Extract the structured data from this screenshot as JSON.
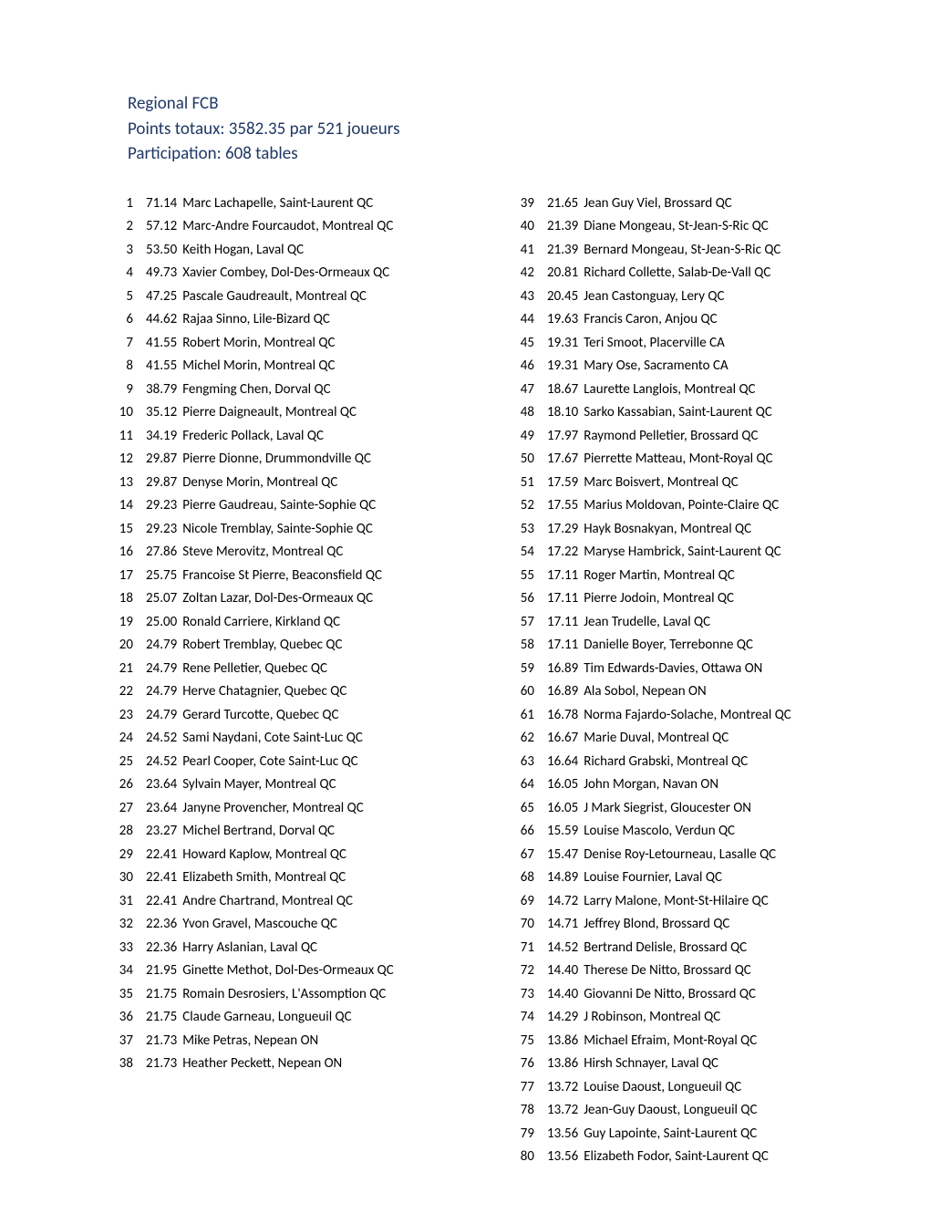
{
  "header": {
    "title": "Regional FCB",
    "line2": "Points totaux: 3582.35 par 521 joueurs",
    "line3": "Participation:  608 tables"
  },
  "entries": [
    {
      "rank": 1,
      "pts": "71.14",
      "name": "Marc Lachapelle, Saint-Laurent QC"
    },
    {
      "rank": 2,
      "pts": "57.12",
      "name": "Marc-Andre Fourcaudot, Montreal QC"
    },
    {
      "rank": 3,
      "pts": "53.50",
      "name": "Keith Hogan, Laval QC"
    },
    {
      "rank": 4,
      "pts": "49.73",
      "name": "Xavier Combey, Dol-Des-Ormeaux QC"
    },
    {
      "rank": 5,
      "pts": "47.25",
      "name": "Pascale Gaudreault, Montreal QC"
    },
    {
      "rank": 6,
      "pts": "44.62",
      "name": "Rajaa Sinno, Lile-Bizard QC"
    },
    {
      "rank": 7,
      "pts": "41.55",
      "name": "Robert Morin, Montreal QC"
    },
    {
      "rank": 8,
      "pts": "41.55",
      "name": "Michel Morin, Montreal QC"
    },
    {
      "rank": 9,
      "pts": "38.79",
      "name": "Fengming Chen, Dorval QC"
    },
    {
      "rank": 10,
      "pts": "35.12",
      "name": "Pierre Daigneault, Montreal QC"
    },
    {
      "rank": 11,
      "pts": "34.19",
      "name": "Frederic Pollack, Laval QC"
    },
    {
      "rank": 12,
      "pts": "29.87",
      "name": "Pierre Dionne, Drummondville QC"
    },
    {
      "rank": 13,
      "pts": "29.87",
      "name": "Denyse Morin, Montreal QC"
    },
    {
      "rank": 14,
      "pts": "29.23",
      "name": "Pierre Gaudreau, Sainte-Sophie QC"
    },
    {
      "rank": 15,
      "pts": "29.23",
      "name": "Nicole Tremblay, Sainte-Sophie QC"
    },
    {
      "rank": 16,
      "pts": "27.86",
      "name": "Steve Merovitz, Montreal QC"
    },
    {
      "rank": 17,
      "pts": "25.75",
      "name": "Francoise St Pierre, Beaconsfield QC"
    },
    {
      "rank": 18,
      "pts": "25.07",
      "name": "Zoltan Lazar, Dol-Des-Ormeaux QC"
    },
    {
      "rank": 19,
      "pts": "25.00",
      "name": "Ronald Carriere, Kirkland QC"
    },
    {
      "rank": 20,
      "pts": "24.79",
      "name": "Robert Tremblay, Quebec QC"
    },
    {
      "rank": 21,
      "pts": "24.79",
      "name": "Rene Pelletier, Quebec QC"
    },
    {
      "rank": 22,
      "pts": "24.79",
      "name": "Herve Chatagnier, Quebec QC"
    },
    {
      "rank": 23,
      "pts": "24.79",
      "name": "Gerard Turcotte, Quebec QC"
    },
    {
      "rank": 24,
      "pts": "24.52",
      "name": "Sami Naydani, Cote Saint-Luc QC"
    },
    {
      "rank": 25,
      "pts": "24.52",
      "name": "Pearl Cooper, Cote Saint-Luc QC"
    },
    {
      "rank": 26,
      "pts": "23.64",
      "name": "Sylvain Mayer, Montreal QC"
    },
    {
      "rank": 27,
      "pts": "23.64",
      "name": "Janyne Provencher, Montreal QC"
    },
    {
      "rank": 28,
      "pts": "23.27",
      "name": "Michel Bertrand, Dorval QC"
    },
    {
      "rank": 29,
      "pts": "22.41",
      "name": "Howard Kaplow, Montreal QC"
    },
    {
      "rank": 30,
      "pts": "22.41",
      "name": "Elizabeth Smith, Montreal QC"
    },
    {
      "rank": 31,
      "pts": "22.41",
      "name": "Andre Chartrand, Montreal QC"
    },
    {
      "rank": 32,
      "pts": "22.36",
      "name": "Yvon Gravel, Mascouche QC"
    },
    {
      "rank": 33,
      "pts": "22.36",
      "name": "Harry Aslanian, Laval QC"
    },
    {
      "rank": 34,
      "pts": "21.95",
      "name": "Ginette Methot, Dol-Des-Ormeaux QC"
    },
    {
      "rank": 35,
      "pts": "21.75",
      "name": "Romain Desrosiers, L'Assomption QC"
    },
    {
      "rank": 36,
      "pts": "21.75",
      "name": "Claude Garneau, Longueuil QC"
    },
    {
      "rank": 37,
      "pts": "21.73",
      "name": "Mike Petras, Nepean ON"
    },
    {
      "rank": 38,
      "pts": "21.73",
      "name": "Heather Peckett, Nepean ON"
    },
    {
      "rank": 39,
      "pts": "21.65",
      "name": "Jean Guy Viel, Brossard QC"
    },
    {
      "rank": 40,
      "pts": "21.39",
      "name": "Diane Mongeau, St-Jean-S-Ric QC"
    },
    {
      "rank": 41,
      "pts": "21.39",
      "name": "Bernard Mongeau, St-Jean-S-Ric QC"
    },
    {
      "rank": 42,
      "pts": "20.81",
      "name": "Richard Collette, Salab-De-Vall QC"
    },
    {
      "rank": 43,
      "pts": "20.45",
      "name": "Jean Castonguay, Lery QC"
    },
    {
      "rank": 44,
      "pts": "19.63",
      "name": "Francis Caron, Anjou QC"
    },
    {
      "rank": 45,
      "pts": "19.31",
      "name": "Teri Smoot, Placerville CA"
    },
    {
      "rank": 46,
      "pts": "19.31",
      "name": "Mary Ose, Sacramento CA"
    },
    {
      "rank": 47,
      "pts": "18.67",
      "name": "Laurette Langlois, Montreal QC"
    },
    {
      "rank": 48,
      "pts": "18.10",
      "name": "Sarko Kassabian, Saint-Laurent QC"
    },
    {
      "rank": 49,
      "pts": "17.97",
      "name": "Raymond Pelletier, Brossard QC"
    },
    {
      "rank": 50,
      "pts": "17.67",
      "name": "Pierrette Matteau, Mont-Royal QC"
    },
    {
      "rank": 51,
      "pts": "17.59",
      "name": "Marc Boisvert, Montreal QC"
    },
    {
      "rank": 52,
      "pts": "17.55",
      "name": "Marius Moldovan, Pointe-Claire QC"
    },
    {
      "rank": 53,
      "pts": "17.29",
      "name": "Hayk Bosnakyan, Montreal QC"
    },
    {
      "rank": 54,
      "pts": "17.22",
      "name": "Maryse Hambrick, Saint-Laurent QC"
    },
    {
      "rank": 55,
      "pts": "17.11",
      "name": "Roger Martin, Montreal QC"
    },
    {
      "rank": 56,
      "pts": "17.11",
      "name": "Pierre Jodoin, Montreal QC"
    },
    {
      "rank": 57,
      "pts": "17.11",
      "name": "Jean Trudelle, Laval QC"
    },
    {
      "rank": 58,
      "pts": "17.11",
      "name": "Danielle Boyer, Terrebonne QC"
    },
    {
      "rank": 59,
      "pts": "16.89",
      "name": "Tim Edwards-Davies, Ottawa ON"
    },
    {
      "rank": 60,
      "pts": "16.89",
      "name": "Ala Sobol, Nepean ON"
    },
    {
      "rank": 61,
      "pts": "16.78",
      "name": "Norma Fajardo-Solache, Montreal QC"
    },
    {
      "rank": 62,
      "pts": "16.67",
      "name": "Marie Duval, Montreal QC"
    },
    {
      "rank": 63,
      "pts": "16.64",
      "name": "Richard Grabski, Montreal QC"
    },
    {
      "rank": 64,
      "pts": "16.05",
      "name": "John Morgan, Navan ON"
    },
    {
      "rank": 65,
      "pts": "16.05",
      "name": "J Mark Siegrist, Gloucester ON"
    },
    {
      "rank": 66,
      "pts": "15.59",
      "name": "Louise Mascolo, Verdun QC"
    },
    {
      "rank": 67,
      "pts": "15.47",
      "name": "Denise Roy-Letourneau, Lasalle QC"
    },
    {
      "rank": 68,
      "pts": "14.89",
      "name": "Louise Fournier, Laval QC"
    },
    {
      "rank": 69,
      "pts": "14.72",
      "name": "Larry Malone, Mont-St-Hilaire QC"
    },
    {
      "rank": 70,
      "pts": "14.71",
      "name": "Jeffrey Blond, Brossard QC"
    },
    {
      "rank": 71,
      "pts": "14.52",
      "name": "Bertrand Delisle, Brossard QC"
    },
    {
      "rank": 72,
      "pts": "14.40",
      "name": "Therese De Nitto, Brossard QC"
    },
    {
      "rank": 73,
      "pts": "14.40",
      "name": "Giovanni De Nitto, Brossard QC"
    },
    {
      "rank": 74,
      "pts": "14.29",
      "name": "J Robinson, Montreal QC"
    },
    {
      "rank": 75,
      "pts": "13.86",
      "name": "Michael Efraim, Mont-Royal QC"
    },
    {
      "rank": 76,
      "pts": "13.86",
      "name": "Hirsh Schnayer, Laval QC"
    },
    {
      "rank": 77,
      "pts": "13.72",
      "name": "Louise Daoust, Longueuil QC"
    },
    {
      "rank": 78,
      "pts": "13.72",
      "name": "Jean-Guy Daoust, Longueuil QC"
    },
    {
      "rank": 79,
      "pts": "13.56",
      "name": "Guy Lapointe, Saint-Laurent QC"
    },
    {
      "rank": 80,
      "pts": "13.56",
      "name": "Elizabeth Fodor, Saint-Laurent QC"
    }
  ],
  "split_at": 38
}
